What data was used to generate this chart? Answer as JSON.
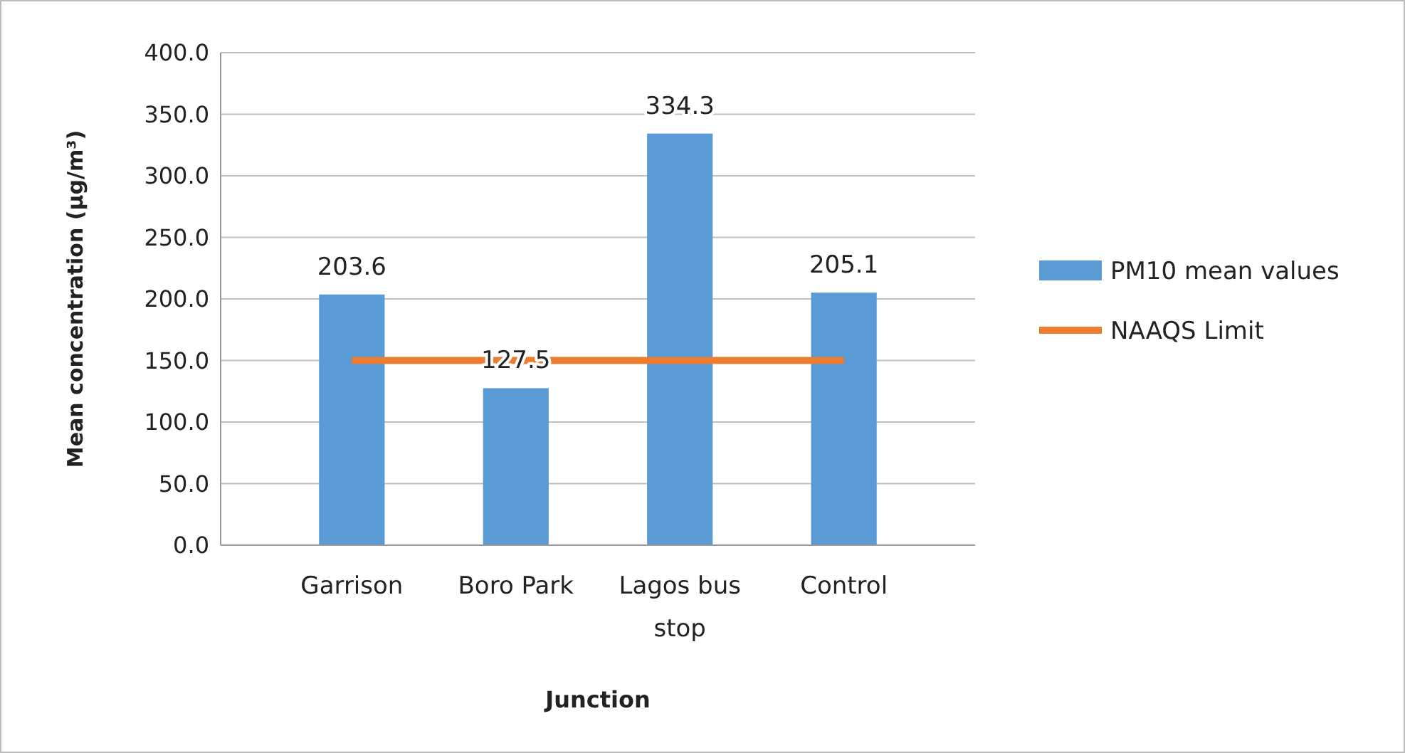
{
  "chart_data": {
    "type": "bar",
    "xlabel": "Junction",
    "ylabel": "Mean concentration  (µg/m³)",
    "categories": [
      "Garrison",
      "Boro Park",
      "Lagos bus stop",
      "Control"
    ],
    "series": [
      {
        "name": "PM10 mean values",
        "color": "#5b9bd5",
        "values": [
          203.6,
          127.5,
          334.3,
          205.1
        ],
        "value_labels": [
          "203.6",
          "127.5",
          "334.3",
          "205.1"
        ]
      },
      {
        "name": "NAAQS  Limit",
        "type": "line",
        "color": "#ed7d31",
        "values": [
          150,
          150,
          150,
          150
        ],
        "marker": "none"
      }
    ],
    "ylim": [
      0,
      400
    ],
    "yticks": [
      {
        "value": 0,
        "label": "0.0"
      },
      {
        "value": 50,
        "label": "50.0"
      },
      {
        "value": 100,
        "label": "100.0"
      },
      {
        "value": 150,
        "label": "150.0"
      },
      {
        "value": 200,
        "label": "200.0"
      },
      {
        "value": 250,
        "label": "250.0"
      },
      {
        "value": 300,
        "label": "300.0"
      },
      {
        "value": 350,
        "label": "350.0"
      },
      {
        "value": 400,
        "label": "400.0"
      }
    ],
    "grid": "y",
    "legend": "right"
  }
}
